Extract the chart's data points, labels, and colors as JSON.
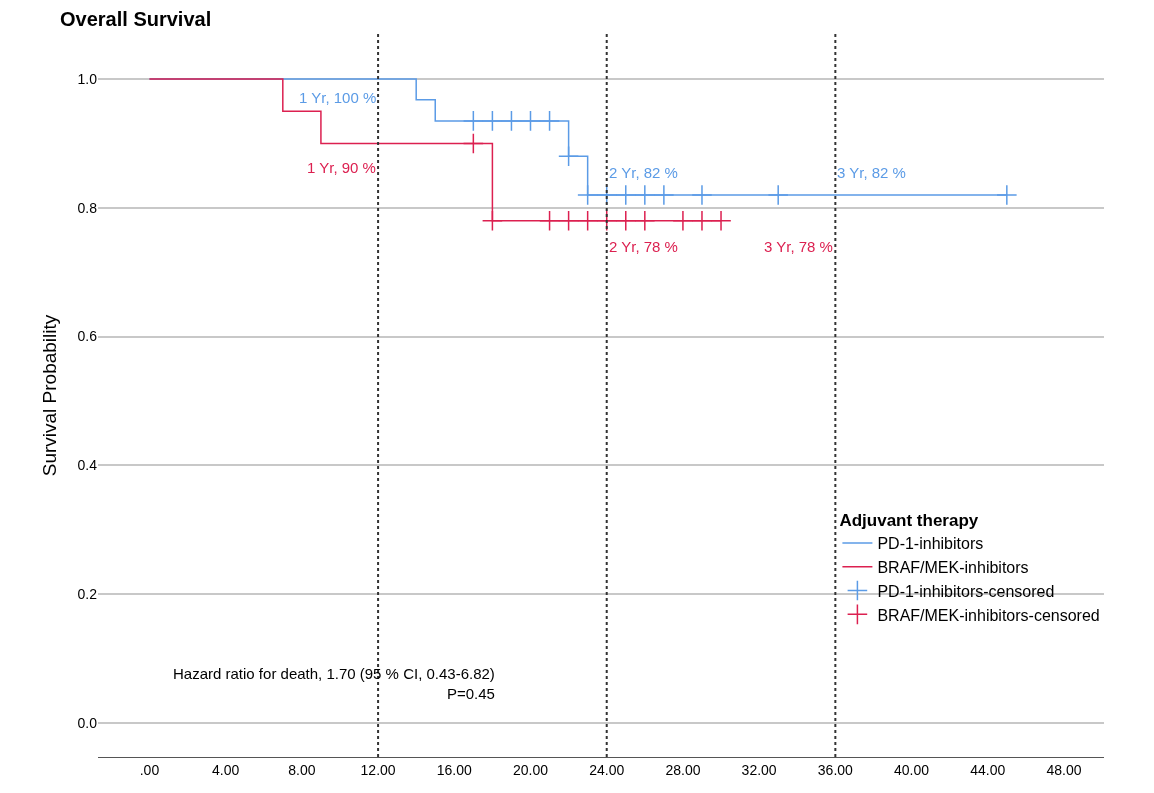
{
  "chart_data": {
    "type": "step",
    "title": "Overall Survival",
    "ylabel": "Survival Probability",
    "legend_title": "Adjuvant therapy",
    "series": [
      {
        "name": "PD-1-inhibitors",
        "color": "#5b9be6",
        "x": [
          0,
          14,
          15,
          22,
          23,
          45
        ],
        "values": [
          1.0,
          0.968,
          0.935,
          0.88,
          0.82,
          0.82
        ]
      },
      {
        "name": "BRAF/MEK-inhibitors",
        "color": "#dc2050",
        "x": [
          0,
          7,
          9,
          18,
          30
        ],
        "values": [
          1.0,
          0.95,
          0.9,
          0.78,
          0.78
        ]
      },
      {
        "name": "PD-1-inhibitors-censored",
        "color": "#5b9be6",
        "type": "scatter",
        "marker": "cross",
        "x": [
          17,
          18,
          19,
          20,
          21,
          22,
          23,
          24,
          25,
          26,
          27,
          29,
          33,
          45
        ],
        "values": [
          0.935,
          0.935,
          0.935,
          0.935,
          0.935,
          0.88,
          0.82,
          0.82,
          0.82,
          0.82,
          0.82,
          0.82,
          0.82,
          0.82
        ]
      },
      {
        "name": "BRAF/MEK-inhibitors-censored",
        "color": "#dc2050",
        "type": "scatter",
        "marker": "cross",
        "x": [
          17,
          18,
          21,
          22,
          23,
          24,
          25,
          26,
          28,
          29,
          30
        ],
        "values": [
          0.9,
          0.78,
          0.78,
          0.78,
          0.78,
          0.78,
          0.78,
          0.78,
          0.78,
          0.78,
          0.78
        ]
      }
    ],
    "annotations": [
      {
        "text": "1 Yr, 100 %",
        "x": 12,
        "y": 1.0
      },
      {
        "text": "1 Yr, 90 %",
        "x": 12,
        "y": 0.9
      },
      {
        "text": "2 Yr, 82 %",
        "x": 24,
        "y": 0.82
      },
      {
        "text": "2 Yr, 78 %",
        "x": 24,
        "y": 0.78
      },
      {
        "text": "3 Yr, 82 %",
        "x": 36,
        "y": 0.82
      },
      {
        "text": "3 Yr, 78 %",
        "x": 36,
        "y": 0.78
      },
      "Hazard ratio for death, 1.70 (95 % CI, 0.43-6.82)\nP=0.45"
    ],
    "ref_lines": [
      {
        "axis": "x",
        "value": 12,
        "color": "#333333",
        "line_style": "dotted"
      },
      {
        "axis": "x",
        "value": 24,
        "color": "#333333",
        "line_style": "dotted"
      },
      {
        "axis": "x",
        "value": 36,
        "color": "#333333",
        "line_style": "dotted"
      }
    ],
    "xlim": [
      -2.7,
      50.1
    ],
    "ylim": [
      -0.053,
      1.07
    ],
    "xticks": [
      {
        "value": 0,
        "label": ".00"
      },
      {
        "value": 4,
        "label": "4.00"
      },
      {
        "value": 8,
        "label": "8.00"
      },
      {
        "value": 12,
        "label": "12.00"
      },
      {
        "value": 16,
        "label": "16.00"
      },
      {
        "value": 20,
        "label": "20.00"
      },
      {
        "value": 24,
        "label": "24.00"
      },
      {
        "value": 28,
        "label": "28.00"
      },
      {
        "value": 32,
        "label": "32.00"
      },
      {
        "value": 36,
        "label": "36.00"
      },
      {
        "value": 40,
        "label": "40.00"
      },
      {
        "value": 44,
        "label": "44.00"
      },
      {
        "value": 48,
        "label": "48.00"
      }
    ],
    "yticks": [
      {
        "value": 0,
        "label": "0.0"
      },
      {
        "value": 0.2,
        "label": "0.2"
      },
      {
        "value": 0.4,
        "label": "0.4"
      },
      {
        "value": 0.6,
        "label": "0.6"
      },
      {
        "value": 0.8,
        "label": "0.8"
      },
      {
        "value": 1.0,
        "label": "1.0"
      }
    ],
    "grid": "y",
    "legend": "bottom right",
    "line_style": "solid"
  }
}
